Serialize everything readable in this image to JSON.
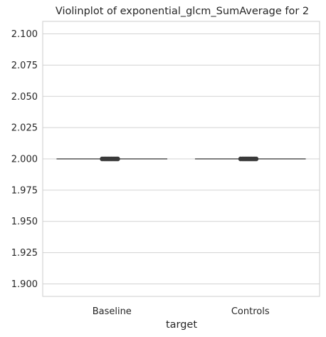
{
  "chart_data": {
    "type": "violin",
    "title": "Violinplot of exponential_glcm_SumAverage for 2",
    "xlabel": "target",
    "ylabel": "",
    "categories": [
      "Baseline",
      "Controls"
    ],
    "ylim": [
      1.89,
      2.11
    ],
    "yticks": [
      1.9,
      1.925,
      1.95,
      1.975,
      2.0,
      2.025,
      2.05,
      2.075,
      2.1
    ],
    "ytick_labels": [
      "1.900",
      "1.925",
      "1.950",
      "1.975",
      "2.000",
      "2.025",
      "2.050",
      "2.075",
      "2.100"
    ],
    "series": [
      {
        "category": "Baseline",
        "value": 2.0
      },
      {
        "category": "Controls",
        "value": 2.0
      }
    ],
    "grid": "horizontal",
    "colors": {
      "line": "#6b6b6b",
      "points": "#3a3a3a",
      "grid": "#d3d3d3",
      "frame": "#cccccc",
      "text": "#262626"
    }
  }
}
